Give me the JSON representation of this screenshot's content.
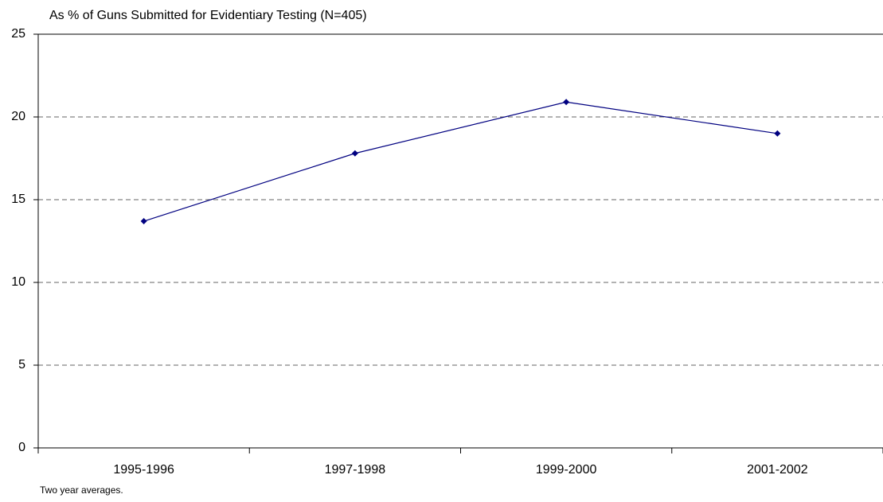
{
  "chart_data": {
    "type": "line",
    "title": "As % of Guns Submitted for Evidentiary Testing (N=405)",
    "note": "Two year averages.",
    "categories": [
      "1995-1996",
      "1997-1998",
      "1999-2000",
      "2001-2002"
    ],
    "series": [
      {
        "color": "#000080",
        "values": [
          13.7,
          17.8,
          20.9,
          19.0
        ]
      }
    ],
    "ylim": [
      0,
      25
    ],
    "yticks": [
      0,
      5,
      10,
      15,
      20,
      25
    ],
    "grid": true
  }
}
